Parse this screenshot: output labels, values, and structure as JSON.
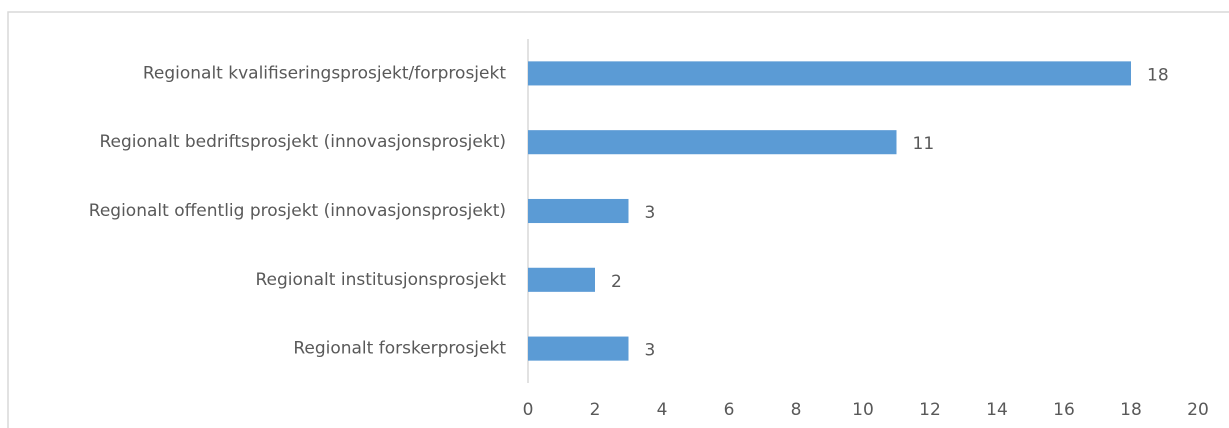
{
  "chart_data": {
    "type": "bar",
    "horizontal": true,
    "categories": [
      "Regionalt kvalifiseringsprosjekt/forprosjekt",
      "Regionalt bedriftsprosjekt (innovasjonsprosjekt)",
      "Regionalt offentlig prosjekt (innovasjonsprosjekt)",
      "Regionalt institusjonsprosjekt",
      "Regionalt forskerprosjekt"
    ],
    "values": [
      18,
      11,
      3,
      2,
      3
    ],
    "color": "#5b9bd5",
    "xlim": [
      0,
      20
    ],
    "xticks": [
      0,
      2,
      4,
      6,
      8,
      10,
      12,
      14,
      16,
      18,
      20
    ],
    "grid": false,
    "data_labels": true
  }
}
